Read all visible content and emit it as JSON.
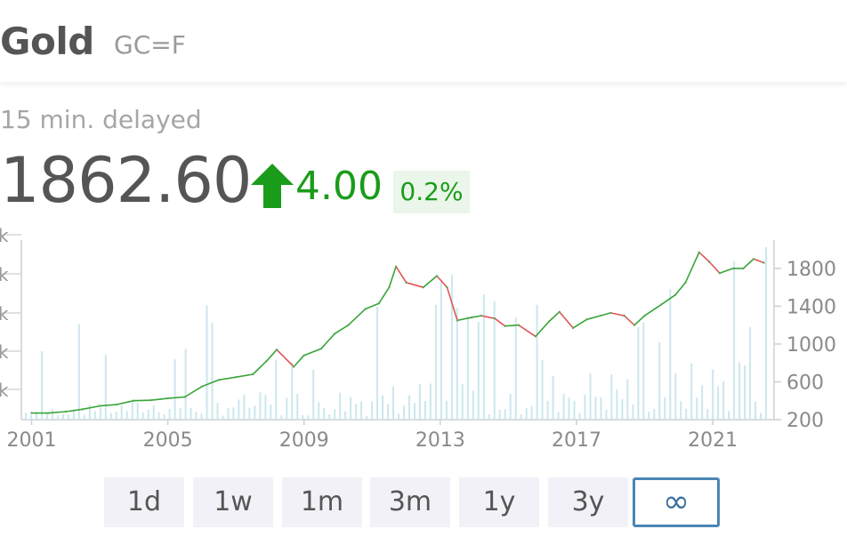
{
  "header": {
    "name": "Gold",
    "ticker": "GC=F"
  },
  "quote": {
    "delay_note": "15 min. delayed",
    "price": "1862.60",
    "change": "4.00",
    "change_percent": "0.2%",
    "direction": "up",
    "up_color": "#1a9c1a"
  },
  "range_buttons": [
    {
      "label": "1d",
      "selected": false
    },
    {
      "label": "1w",
      "selected": false
    },
    {
      "label": "1m",
      "selected": false
    },
    {
      "label": "3m",
      "selected": false
    },
    {
      "label": "1y",
      "selected": false
    },
    {
      "label": "3y",
      "selected": false
    },
    {
      "label": "∞",
      "selected": true
    }
  ],
  "chart_data": {
    "type": "line",
    "x_ticks": [
      "2001",
      "2005",
      "2009",
      "2013",
      "2017",
      "2021"
    ],
    "y_ticks": [
      "200",
      "600",
      "1000",
      "1400",
      "1800"
    ],
    "left_axis_ticks": [
      "k",
      "k",
      "k",
      "k",
      "k"
    ],
    "ylim": [
      200,
      2100
    ],
    "xlim": [
      2000.7,
      2022.8
    ],
    "series": [
      {
        "points": [
          [
            2001.0,
            270
          ],
          [
            2001.5,
            270
          ],
          [
            2002.0,
            285
          ],
          [
            2002.5,
            310
          ],
          [
            2003.0,
            345
          ],
          [
            2003.5,
            360
          ],
          [
            2004.0,
            400
          ],
          [
            2004.5,
            405
          ],
          [
            2005.0,
            425
          ],
          [
            2005.5,
            440
          ],
          [
            2006.0,
            550
          ],
          [
            2006.5,
            620
          ],
          [
            2007.0,
            650
          ],
          [
            2007.5,
            680
          ],
          [
            2007.9,
            820
          ],
          [
            2008.2,
            940
          ],
          [
            2008.7,
            760
          ],
          [
            2009.0,
            880
          ],
          [
            2009.5,
            950
          ],
          [
            2009.9,
            1110
          ],
          [
            2010.3,
            1200
          ],
          [
            2010.8,
            1370
          ],
          [
            2011.2,
            1430
          ],
          [
            2011.5,
            1600
          ],
          [
            2011.7,
            1820
          ],
          [
            2012.0,
            1650
          ],
          [
            2012.5,
            1600
          ],
          [
            2012.9,
            1720
          ],
          [
            2013.2,
            1600
          ],
          [
            2013.5,
            1250
          ],
          [
            2013.9,
            1280
          ],
          [
            2014.2,
            1300
          ],
          [
            2014.6,
            1270
          ],
          [
            2014.9,
            1190
          ],
          [
            2015.3,
            1200
          ],
          [
            2015.8,
            1080
          ],
          [
            2016.2,
            1240
          ],
          [
            2016.5,
            1340
          ],
          [
            2016.9,
            1170
          ],
          [
            2017.3,
            1260
          ],
          [
            2017.7,
            1300
          ],
          [
            2018.0,
            1330
          ],
          [
            2018.4,
            1300
          ],
          [
            2018.7,
            1200
          ],
          [
            2019.0,
            1300
          ],
          [
            2019.5,
            1420
          ],
          [
            2019.9,
            1520
          ],
          [
            2020.2,
            1650
          ],
          [
            2020.6,
            1970
          ],
          [
            2020.9,
            1870
          ],
          [
            2021.2,
            1750
          ],
          [
            2021.6,
            1800
          ],
          [
            2021.9,
            1800
          ],
          [
            2022.2,
            1900
          ],
          [
            2022.5,
            1860
          ]
        ]
      }
    ],
    "volume_bar_color": "#c5e4ec",
    "line_colors": {
      "up": "#37a537",
      "down": "#e35555"
    },
    "axis_color": "#cfcfcf",
    "tick_color": "#8a8a8a"
  }
}
